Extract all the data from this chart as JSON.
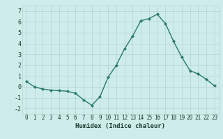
{
  "x": [
    0,
    1,
    2,
    3,
    4,
    5,
    6,
    7,
    8,
    9,
    10,
    11,
    12,
    13,
    14,
    15,
    16,
    17,
    18,
    19,
    20,
    21,
    22,
    23
  ],
  "y": [
    0.5,
    0.0,
    -0.2,
    -0.3,
    -0.35,
    -0.4,
    -0.6,
    -1.2,
    -1.7,
    -0.9,
    0.9,
    2.0,
    3.5,
    4.7,
    6.1,
    6.3,
    6.7,
    5.85,
    4.2,
    2.75,
    1.5,
    1.2,
    0.7,
    0.1
  ],
  "line_color": "#2a7a6a",
  "marker": "D",
  "marker_size": 2.0,
  "line_width": 1.0,
  "xlabel": "Humidex (Indice chaleur)",
  "xlim": [
    -0.5,
    23.5
  ],
  "ylim": [
    -2.5,
    7.5
  ],
  "yticks": [
    -2,
    -1,
    0,
    1,
    2,
    3,
    4,
    5,
    6,
    7
  ],
  "xticks": [
    0,
    1,
    2,
    3,
    4,
    5,
    6,
    7,
    8,
    9,
    10,
    11,
    12,
    13,
    14,
    15,
    16,
    17,
    18,
    19,
    20,
    21,
    22,
    23
  ],
  "bg_color": "#ceecea",
  "grid_color": "#b8d8d4",
  "label_color": "#1a3c32",
  "tick_fontsize": 5.5,
  "xlabel_fontsize": 6.5
}
